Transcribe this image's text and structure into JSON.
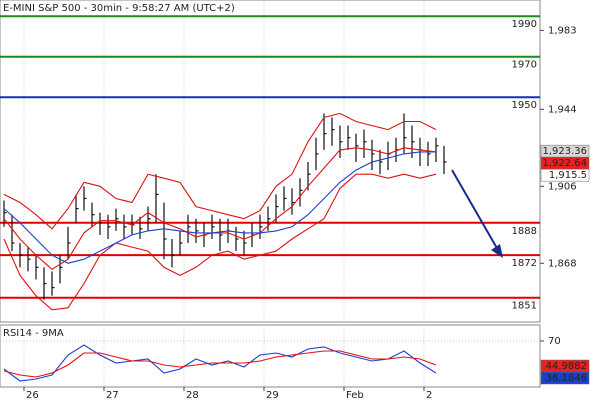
{
  "chart_data": [
    {
      "type": "ohlc",
      "title": "E-MINI S&P 500 - 30min - 9:58:27 AM (UTC+2)",
      "xlim": [
        0,
        135
      ],
      "ylim": [
        1839,
        1998
      ],
      "yticks": [
        {
          "value": 1983,
          "label": "1,983"
        },
        {
          "value": 1944,
          "label": "1,944"
        },
        {
          "value": 1906,
          "label": "1,906"
        },
        {
          "value": 1868,
          "label": "1,868"
        }
      ],
      "x": [
        1,
        3,
        5,
        7,
        9,
        11,
        13,
        15,
        17,
        19,
        21,
        23,
        25,
        27,
        29,
        31,
        33,
        35,
        37,
        39,
        41,
        43,
        45,
        47,
        49,
        51,
        53,
        55,
        57,
        59,
        61,
        63,
        65,
        67,
        69,
        71,
        73,
        75,
        77,
        79,
        81,
        83,
        85,
        87,
        89,
        91,
        93,
        95,
        97,
        99,
        101,
        103,
        105,
        107,
        109,
        111
      ],
      "high": [
        1899,
        1892,
        1878,
        1876,
        1872,
        1866,
        1864,
        1872,
        1886,
        1902,
        1906,
        1898,
        1893,
        1892,
        1895,
        1892,
        1892,
        1891,
        1896,
        1912,
        1898,
        1880,
        1884,
        1892,
        1890,
        1888,
        1892,
        1890,
        1890,
        1886,
        1884,
        1888,
        1892,
        1896,
        1902,
        1906,
        1905,
        1910,
        1918,
        1930,
        1942,
        1940,
        1936,
        1936,
        1932,
        1934,
        1929,
        1924,
        1928,
        1930,
        1942,
        1936,
        1930,
        1928,
        1930,
        1926
      ],
      "low": [
        1886,
        1874,
        1866,
        1864,
        1860,
        1850,
        1852,
        1858,
        1870,
        1888,
        1894,
        1886,
        1882,
        1880,
        1884,
        1880,
        1882,
        1880,
        1884,
        1888,
        1870,
        1866,
        1872,
        1878,
        1878,
        1876,
        1880,
        1874,
        1878,
        1874,
        1872,
        1876,
        1880,
        1884,
        1888,
        1894,
        1892,
        1896,
        1904,
        1914,
        1924,
        1926,
        1920,
        1924,
        1918,
        1920,
        1914,
        1912,
        1914,
        1918,
        1922,
        1920,
        1916,
        1916,
        1918,
        1912
      ],
      "close": [
        1893,
        1878,
        1872,
        1870,
        1866,
        1858,
        1856,
        1866,
        1878,
        1895,
        1900,
        1892,
        1888,
        1886,
        1890,
        1886,
        1887,
        1885,
        1890,
        1902,
        1880,
        1872,
        1878,
        1886,
        1884,
        1882,
        1886,
        1882,
        1884,
        1880,
        1878,
        1882,
        1886,
        1890,
        1896,
        1900,
        1898,
        1904,
        1912,
        1922,
        1932,
        1934,
        1928,
        1930,
        1926,
        1928,
        1922,
        1918,
        1922,
        1924,
        1930,
        1928,
        1924,
        1922,
        1926,
        1918
      ],
      "bar_color": "#111111",
      "series": [
        {
          "color": "#e01010",
          "x": [
            1,
            5,
            9,
            13,
            17,
            21,
            25,
            29,
            33,
            37,
            41,
            45,
            49,
            53,
            57,
            61,
            65,
            69,
            73,
            77,
            81,
            85,
            89,
            93,
            97,
            101,
            105,
            109
          ],
          "values": [
            1902,
            1898,
            1892,
            1885,
            1895,
            1908,
            1906,
            1900,
            1898,
            1912,
            1910,
            1908,
            1896,
            1894,
            1892,
            1890,
            1894,
            1906,
            1912,
            1928,
            1940,
            1942,
            1938,
            1936,
            1934,
            1938,
            1938,
            1934
          ]
        },
        {
          "color": "#e01010",
          "x": [
            1,
            5,
            9,
            13,
            17,
            21,
            25,
            29,
            33,
            37,
            41,
            45,
            49,
            53,
            57,
            61,
            65,
            69,
            73,
            77,
            81,
            85,
            89,
            93,
            97,
            101,
            105,
            109
          ],
          "values": [
            1890,
            1880,
            1872,
            1865,
            1870,
            1883,
            1889,
            1889,
            1887,
            1893,
            1888,
            1885,
            1881,
            1883,
            1883,
            1880,
            1883,
            1890,
            1896,
            1906,
            1915,
            1924,
            1925,
            1924,
            1922,
            1925,
            1924,
            1923
          ]
        },
        {
          "color": "#e01010",
          "x": [
            1,
            5,
            9,
            13,
            17,
            21,
            25,
            29,
            33,
            37,
            41,
            45,
            49,
            53,
            57,
            61,
            65,
            69,
            73,
            77,
            81,
            85,
            89,
            93,
            97,
            101,
            105,
            109
          ],
          "values": [
            1880,
            1862,
            1852,
            1845,
            1846,
            1858,
            1872,
            1878,
            1876,
            1874,
            1866,
            1862,
            1866,
            1872,
            1874,
            1870,
            1872,
            1874,
            1880,
            1885,
            1890,
            1905,
            1912,
            1912,
            1910,
            1912,
            1910,
            1912
          ]
        },
        {
          "color": "#1a3fd0",
          "x": [
            1,
            5,
            9,
            13,
            17,
            21,
            25,
            29,
            33,
            37,
            41,
            45,
            49,
            53,
            57,
            61,
            65,
            69,
            73,
            77,
            81,
            85,
            89,
            93,
            97,
            101,
            105,
            109
          ],
          "values": [
            1895,
            1888,
            1880,
            1872,
            1868,
            1870,
            1874,
            1878,
            1882,
            1884,
            1885,
            1884,
            1883,
            1883,
            1884,
            1883,
            1883,
            1884,
            1886,
            1892,
            1900,
            1908,
            1914,
            1918,
            1920,
            1922,
            1923,
            1923
          ]
        }
      ],
      "levels": [
        {
          "value": 1990,
          "color": "#1b8c1b"
        },
        {
          "value": 1970,
          "color": "#1b8c1b"
        },
        {
          "value": 1950,
          "color": "#1030c0"
        },
        {
          "value": 1888,
          "color": "#e00000"
        },
        {
          "value": 1872,
          "color": "#e00000"
        },
        {
          "value": 1851,
          "color": "#e00000"
        }
      ],
      "price_labels": [
        {
          "value": 1923.36,
          "label": "1,923.36",
          "color": "#d8d8d8"
        },
        {
          "value": 1922.64,
          "label": "1,922.64",
          "color": "#e82020"
        },
        {
          "value": 1915.5,
          "label": "1,915.5",
          "color": "#ffffff"
        }
      ]
    },
    {
      "type": "line",
      "title": "RSI14 - 9MA",
      "xlim": [
        0,
        135
      ],
      "ylim": [
        24,
        86
      ],
      "yticks": [
        70
      ],
      "grid": true,
      "xticks": [
        {
          "value": 6,
          "label": "26"
        },
        {
          "value": 26,
          "label": "27"
        },
        {
          "value": 46,
          "label": "28"
        },
        {
          "value": 66,
          "label": "29"
        },
        {
          "value": 86,
          "label": "Feb"
        },
        {
          "value": 106,
          "label": "2"
        }
      ],
      "series": [
        {
          "color": "#1a3fd0",
          "x": [
            1,
            5,
            9,
            13,
            17,
            21,
            25,
            29,
            33,
            37,
            41,
            45,
            49,
            53,
            57,
            61,
            65,
            69,
            73,
            77,
            81,
            85,
            89,
            93,
            97,
            101,
            105,
            109
          ],
          "values": [
            42,
            30,
            32,
            36,
            56,
            66,
            56,
            48,
            50,
            52,
            38,
            42,
            52,
            46,
            50,
            44,
            56,
            58,
            54,
            62,
            64,
            58,
            54,
            50,
            52,
            60,
            48,
            38
          ]
        },
        {
          "color": "#e01010",
          "x": [
            1,
            5,
            9,
            13,
            17,
            21,
            25,
            29,
            33,
            37,
            41,
            45,
            49,
            53,
            57,
            61,
            65,
            69,
            73,
            77,
            81,
            85,
            89,
            93,
            97,
            101,
            105,
            109
          ],
          "values": [
            40,
            36,
            34,
            38,
            46,
            58,
            58,
            54,
            50,
            50,
            46,
            44,
            46,
            48,
            48,
            48,
            50,
            54,
            56,
            58,
            60,
            60,
            56,
            52,
            52,
            54,
            52,
            46
          ]
        }
      ],
      "price_labels": [
        {
          "value": 44.9882,
          "label": "44.9882",
          "color": "#e82020"
        },
        {
          "value": 36.1846,
          "label": "36.1846",
          "color": "#1a3fd0"
        }
      ]
    }
  ]
}
